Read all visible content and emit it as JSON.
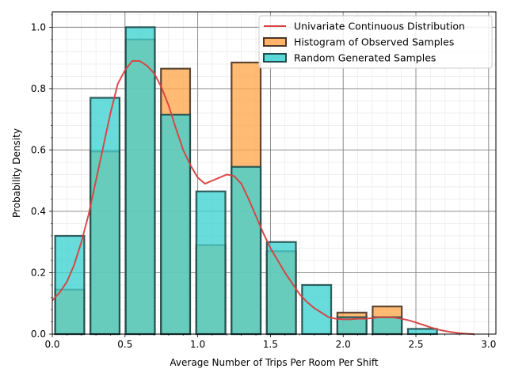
{
  "chart_data": {
    "type": "bar",
    "title": "",
    "xlabel": "Average Number of Trips Per Room Per Shift",
    "ylabel": "Probability Density",
    "xlim": [
      0.0,
      3.05
    ],
    "ylim": [
      0.0,
      1.05
    ],
    "xticks": [
      "0.0",
      "0.5",
      "1.0",
      "1.5",
      "2.0",
      "2.5",
      "3.0"
    ],
    "yticks": [
      "0.0",
      "0.2",
      "0.4",
      "0.6",
      "0.8",
      "1.0"
    ],
    "grid": true,
    "legend_position": "top-right",
    "bin_width": 0.2425,
    "bar_width": 0.2,
    "histograms": [
      {
        "name": "Histogram of Observed Samples",
        "color": "#ffa64d",
        "edge_color": "#4d3626",
        "bin_starts": [
          0.02,
          0.2625,
          0.505,
          0.7475,
          0.99,
          1.2325,
          1.475,
          1.7175,
          1.96,
          2.2025,
          2.445
        ],
        "values": [
          0.145,
          0.595,
          0.96,
          0.865,
          0.29,
          0.885,
          0.27,
          0.0,
          0.07,
          0.09,
          0.0
        ]
      },
      {
        "name": "Random Generated Samples",
        "color": "#3dd1d1",
        "edge_color": "#1f4d4d",
        "bin_starts": [
          0.02,
          0.2625,
          0.505,
          0.7475,
          0.99,
          1.2325,
          1.475,
          1.7175,
          1.96,
          2.2025,
          2.445
        ],
        "values": [
          0.32,
          0.77,
          1.0,
          0.715,
          0.465,
          0.545,
          0.3,
          0.16,
          0.055,
          0.055,
          0.017
        ]
      }
    ],
    "line": {
      "name": "Univariate Continuous Distribution",
      "color": "#d94040",
      "x": [
        0.0,
        0.05,
        0.1,
        0.15,
        0.2,
        0.25,
        0.3,
        0.35,
        0.4,
        0.45,
        0.5,
        0.55,
        0.6,
        0.65,
        0.7,
        0.75,
        0.8,
        0.85,
        0.9,
        0.95,
        1.0,
        1.05,
        1.1,
        1.15,
        1.2,
        1.25,
        1.3,
        1.35,
        1.4,
        1.45,
        1.5,
        1.55,
        1.6,
        1.65,
        1.7,
        1.75,
        1.8,
        1.85,
        1.9,
        1.95,
        2.0,
        2.05,
        2.1,
        2.15,
        2.2,
        2.25,
        2.3,
        2.35,
        2.4,
        2.45,
        2.5,
        2.55,
        2.6,
        2.65,
        2.7,
        2.75,
        2.8,
        2.85,
        2.9
      ],
      "y": [
        0.11,
        0.135,
        0.17,
        0.225,
        0.3,
        0.39,
        0.5,
        0.61,
        0.72,
        0.815,
        0.86,
        0.89,
        0.89,
        0.875,
        0.85,
        0.805,
        0.745,
        0.67,
        0.6,
        0.55,
        0.51,
        0.49,
        0.5,
        0.51,
        0.52,
        0.515,
        0.49,
        0.44,
        0.385,
        0.33,
        0.28,
        0.24,
        0.2,
        0.165,
        0.13,
        0.105,
        0.085,
        0.07,
        0.055,
        0.05,
        0.048,
        0.048,
        0.05,
        0.05,
        0.052,
        0.055,
        0.055,
        0.054,
        0.05,
        0.045,
        0.038,
        0.03,
        0.022,
        0.015,
        0.01,
        0.006,
        0.003,
        0.001,
        0.0
      ]
    },
    "legend": [
      "Univariate Continuous Distribution",
      "Histogram of Observed Samples",
      "Random Generated Samples"
    ]
  }
}
